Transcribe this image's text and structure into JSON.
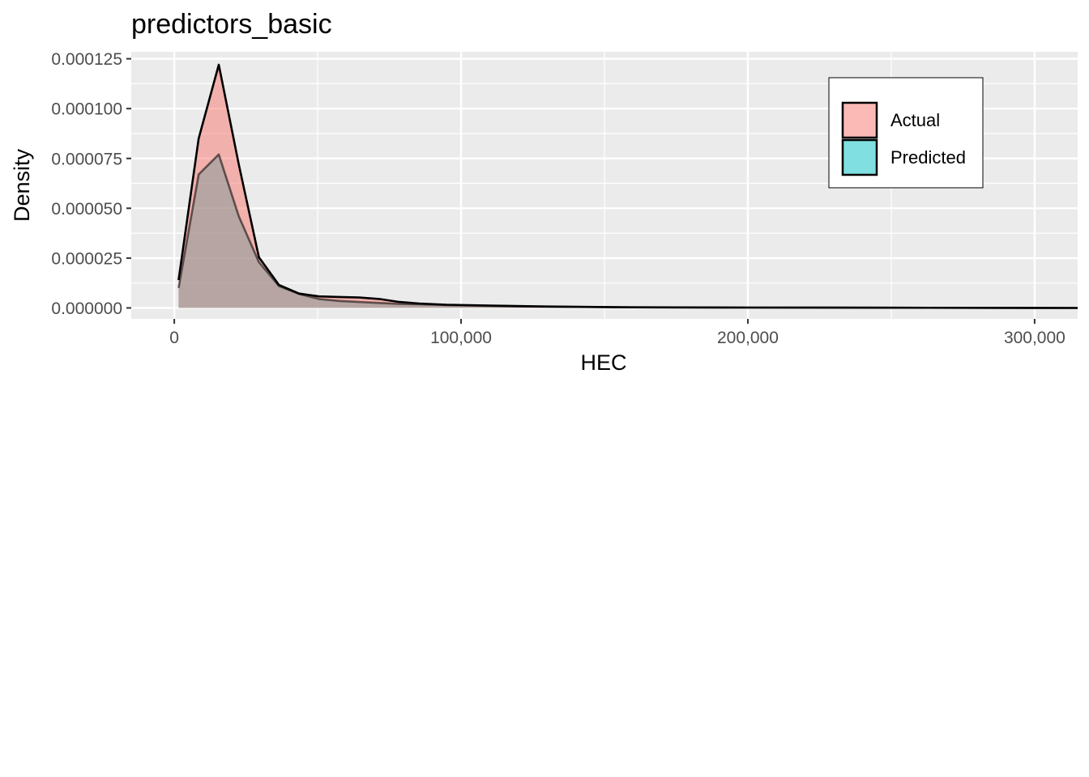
{
  "chart_data": {
    "type": "area",
    "title": "predictors_basic",
    "xlabel": "HEC",
    "ylabel": "Density",
    "xlim": [
      -15000,
      315000
    ],
    "ylim": [
      -5.5e-06,
      0.0001285
    ],
    "x_ticks": [
      {
        "value": 0,
        "label": "0"
      },
      {
        "value": 100000,
        "label": "100,000"
      },
      {
        "value": 200000,
        "label": "200,000"
      },
      {
        "value": 300000,
        "label": "300,000"
      }
    ],
    "y_ticks": [
      {
        "value": 0,
        "label": "0.000000"
      },
      {
        "value": 2.5e-05,
        "label": "0.000025"
      },
      {
        "value": 5e-05,
        "label": "0.000050"
      },
      {
        "value": 7.5e-05,
        "label": "0.000075"
      },
      {
        "value": 0.0001,
        "label": "0.000100"
      },
      {
        "value": 0.000125,
        "label": "0.000125"
      }
    ],
    "grid": true,
    "legend": {
      "position": "top-right",
      "entries": [
        {
          "label": "Actual",
          "color": "#F8766D"
        },
        {
          "label": "Predicted",
          "color": "#00BFC4"
        }
      ]
    },
    "series": [
      {
        "name": "Actual",
        "color": "#F8766D",
        "x": [
          1500,
          8500,
          15500,
          22500,
          29500,
          36500,
          43500,
          50500,
          57500,
          64500,
          71500,
          78500,
          85500,
          95000,
          110000,
          130000,
          160000,
          200000,
          250000,
          315000
        ],
        "y": [
          1.4e-05,
          8.5e-05,
          0.000122,
          7.2e-05,
          2.55e-05,
          1.15e-05,
          7.2e-06,
          5.8e-06,
          5.5e-06,
          5.2e-06,
          4.5e-06,
          3e-06,
          2.2e-06,
          1.6e-06,
          1.2e-06,
          7e-07,
          3e-07,
          2e-07,
          1e-07,
          0.0
        ]
      },
      {
        "name": "Predicted",
        "color": "#00BFC4",
        "x": [
          1500,
          8500,
          15500,
          22500,
          29500,
          36500,
          43500,
          50500,
          57500,
          64500,
          71500,
          78500,
          85500,
          95000,
          110000,
          130000,
          160000,
          200000,
          250000,
          315000
        ],
        "y": [
          1e-05,
          6.7e-05,
          7.7e-05,
          4.6e-05,
          2.3e-05,
          1.1e-05,
          7e-06,
          4.5e-06,
          3.5e-06,
          3e-06,
          2.5e-06,
          2e-06,
          1.8e-06,
          1.4e-06,
          1e-06,
          6e-07,
          3e-07,
          2e-07,
          1e-07,
          0.0
        ]
      }
    ]
  }
}
